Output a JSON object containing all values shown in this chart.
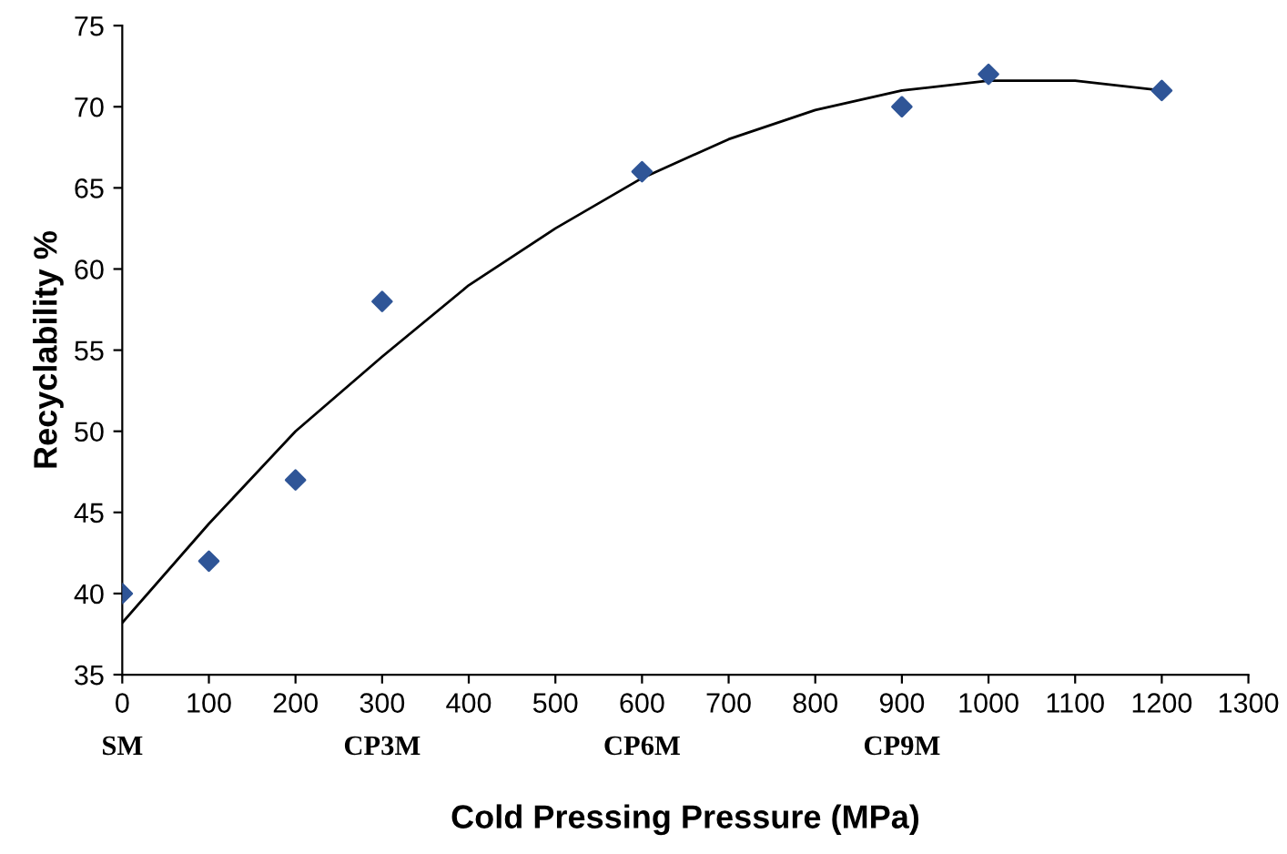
{
  "chart_data": {
    "type": "scatter",
    "xlabel": "Cold Pressing Pressure (MPa)",
    "ylabel": "Recyclability %",
    "series": [
      {
        "color": "#2f5597",
        "marker": "diamond",
        "x": [
          0,
          100,
          200,
          300,
          600,
          900,
          1000,
          1200
        ],
        "values": [
          40,
          42,
          47,
          58,
          66,
          70,
          72,
          71
        ]
      },
      {
        "type": "line",
        "color": "#000000",
        "line_style": "solid",
        "marker": "none",
        "x": [
          0,
          100,
          200,
          300,
          400,
          500,
          600,
          700,
          800,
          900,
          1000,
          1100,
          1200
        ],
        "values": [
          38.2,
          44.3,
          50.0,
          54.6,
          59.0,
          62.5,
          65.6,
          68.0,
          69.8,
          71.0,
          71.6,
          71.6,
          71.0
        ]
      }
    ],
    "annotations": [
      "SM",
      "CP3M",
      "CP6M",
      "CP9M"
    ],
    "xlim": [
      0,
      1300
    ],
    "xticks": [
      0,
      100,
      200,
      300,
      400,
      500,
      600,
      700,
      800,
      900,
      1000,
      1100,
      1200,
      1300
    ],
    "ylim": [
      35,
      75
    ],
    "yticks": [
      35,
      40,
      45,
      50,
      55,
      60,
      65,
      70,
      75
    ],
    "grid": false,
    "legend": false
  }
}
